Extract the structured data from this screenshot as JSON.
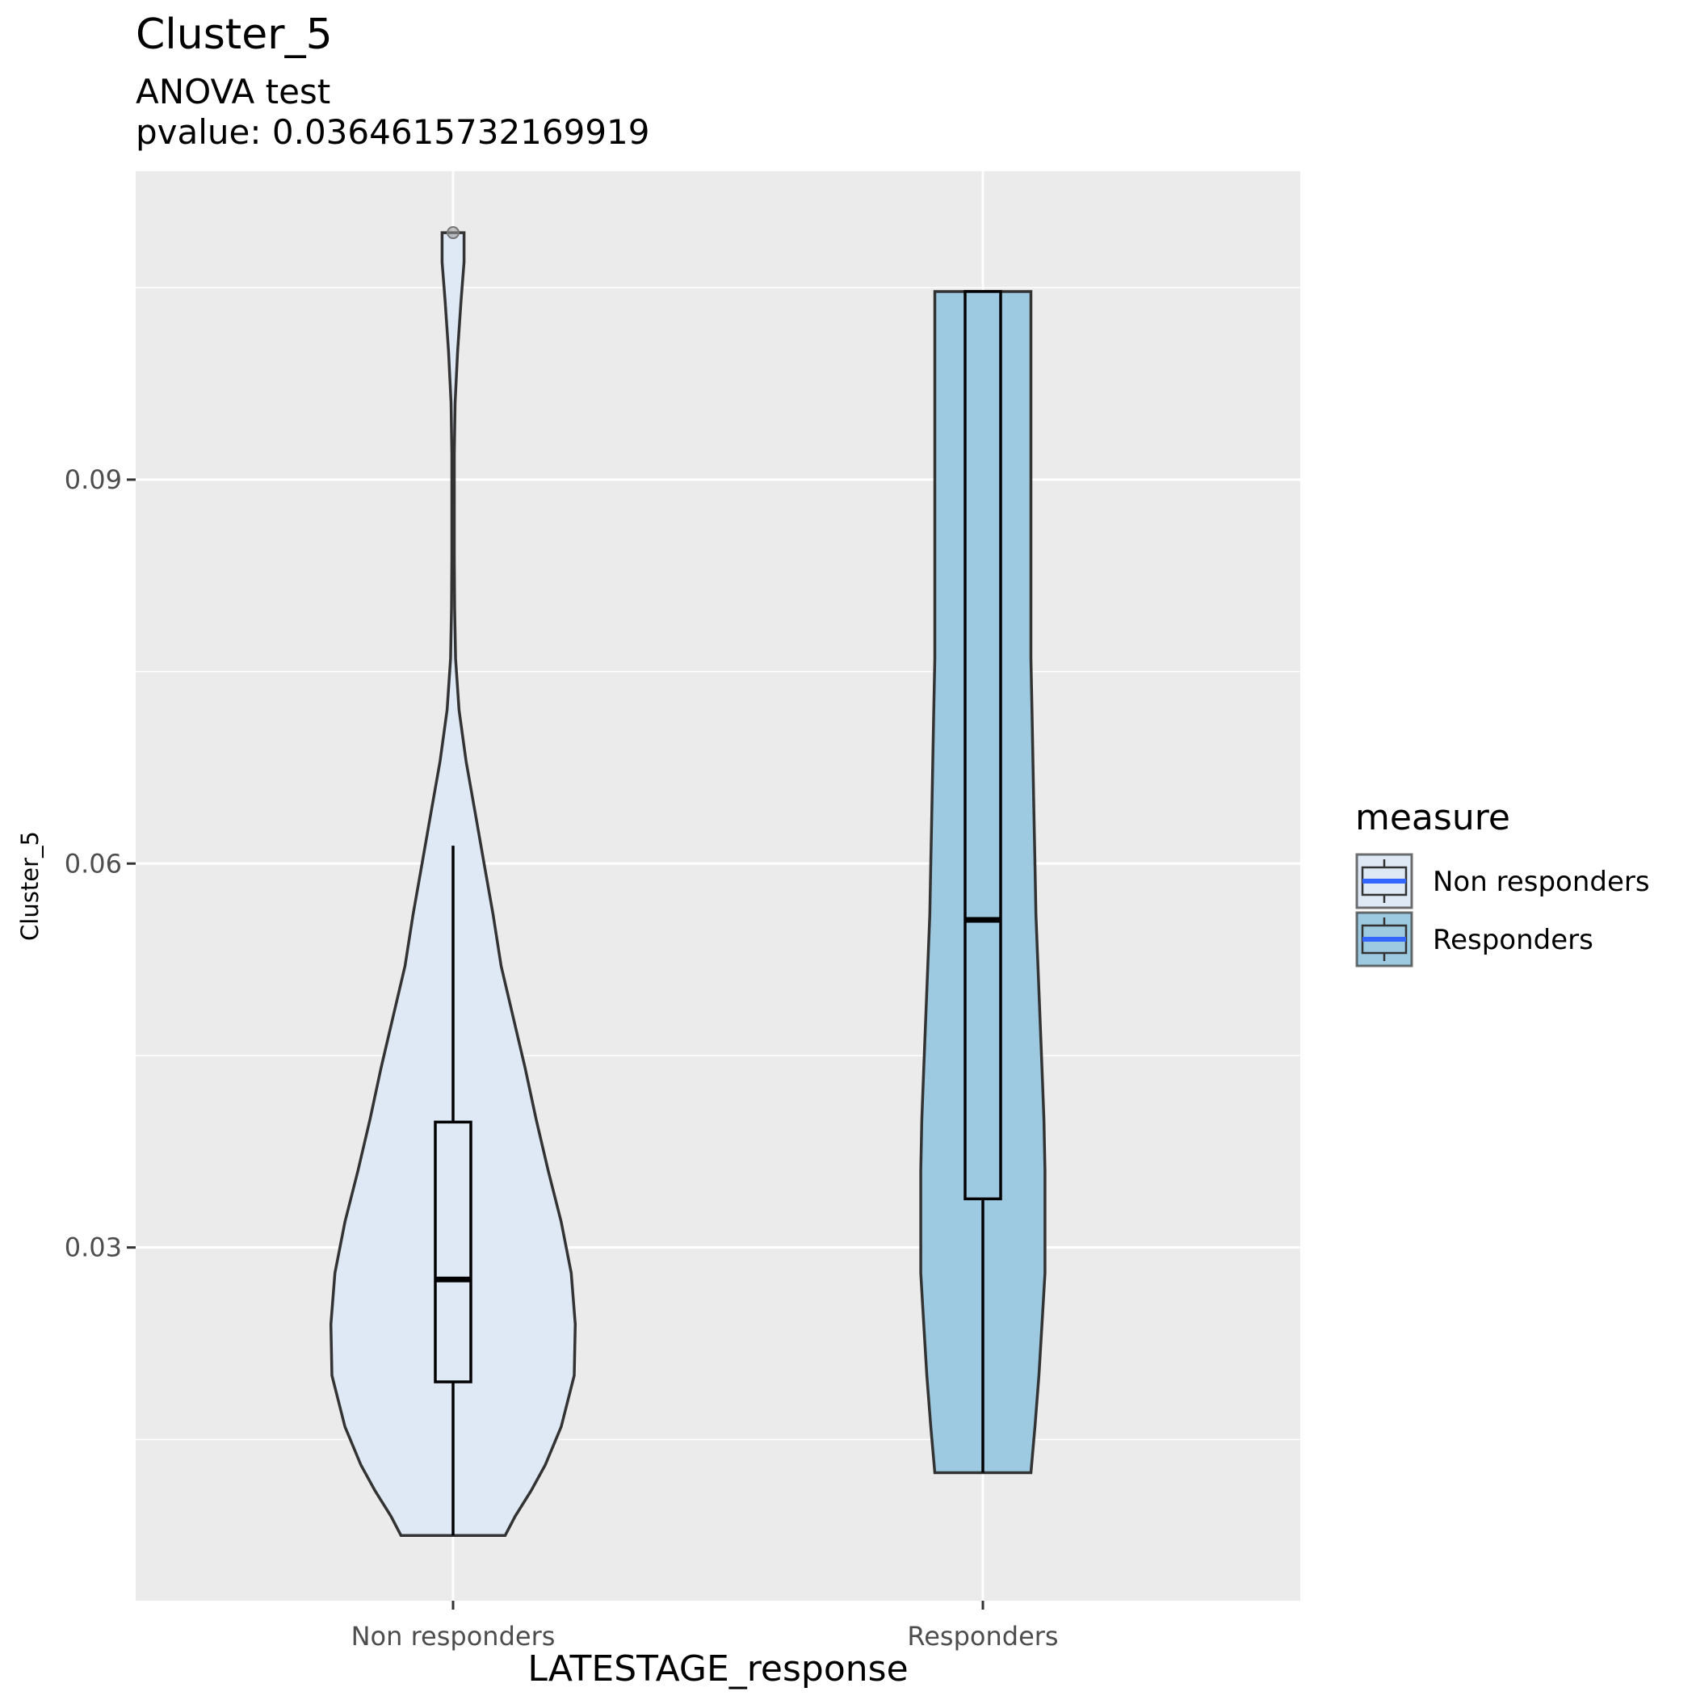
{
  "chart_data": {
    "type": "violin",
    "title": "Cluster_5",
    "subtitle_line1": "ANOVA test",
    "subtitle_line2": "pvalue: 0.0364615732169919",
    "xlabel": "LATESTAGE_response",
    "ylabel": "Cluster_5",
    "categories": [
      "Non responders",
      "Responders"
    ],
    "ylim": [
      0.0024,
      0.1141
    ],
    "yticks": [
      0.03,
      0.06,
      0.09
    ],
    "ytick_labels": [
      "0.03",
      "0.06",
      "0.09"
    ],
    "grid": true,
    "legend": {
      "title": "measure",
      "placement": "right",
      "entries": [
        "Non responders",
        "Responders"
      ]
    },
    "series": [
      {
        "category": "Non responders",
        "fill": "#dee9f5",
        "box": {
          "min": 0.0075,
          "q1": 0.0195,
          "median": 0.0275,
          "q3": 0.0398,
          "max": 0.0614
        },
        "outliers": [
          0.1093
        ],
        "violin": {
          "y": [
            0.0075,
            0.009,
            0.011,
            0.013,
            0.016,
            0.02,
            0.024,
            0.028,
            0.032,
            0.036,
            0.04,
            0.044,
            0.048,
            0.052,
            0.056,
            0.06,
            0.064,
            0.068,
            0.072,
            0.076,
            0.08,
            0.084,
            0.088,
            0.092,
            0.096,
            0.1,
            0.104,
            0.107,
            0.1093
          ],
          "halfwidth": [
            0.52,
            0.62,
            0.78,
            0.92,
            1.08,
            1.21,
            1.22,
            1.18,
            1.08,
            0.95,
            0.83,
            0.72,
            0.6,
            0.48,
            0.4,
            0.31,
            0.22,
            0.13,
            0.06,
            0.025,
            0.015,
            0.012,
            0.012,
            0.012,
            0.02,
            0.045,
            0.08,
            0.11,
            0.11
          ]
        }
      },
      {
        "category": "Responders",
        "fill": "#9ecae1",
        "box": {
          "min": 0.0124,
          "q1": 0.0338,
          "median": 0.0556,
          "q3": 0.1047,
          "max": 0.1047
        },
        "outliers": [],
        "violin": {
          "y": [
            0.0124,
            0.016,
            0.02,
            0.024,
            0.028,
            0.032,
            0.036,
            0.04,
            0.044,
            0.048,
            0.052,
            0.056,
            0.06,
            0.064,
            0.068,
            0.072,
            0.076,
            0.08,
            0.084,
            0.088,
            0.092,
            0.096,
            0.1,
            0.1047
          ],
          "halfwidth": [
            0.48,
            0.52,
            0.56,
            0.59,
            0.62,
            0.62,
            0.62,
            0.61,
            0.59,
            0.57,
            0.55,
            0.53,
            0.52,
            0.51,
            0.5,
            0.49,
            0.48,
            0.48,
            0.48,
            0.48,
            0.48,
            0.48,
            0.48,
            0.48
          ]
        }
      }
    ]
  }
}
